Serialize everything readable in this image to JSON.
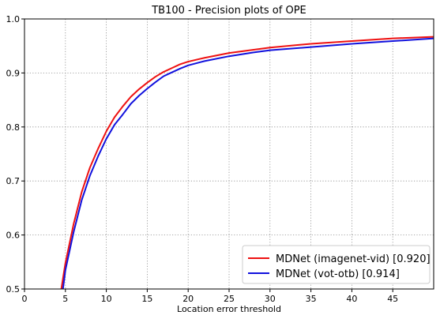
{
  "chart_data": {
    "type": "line",
    "title": "TB100 - Precision plots of OPE",
    "xlabel": "Location error threshold",
    "ylabel": "",
    "xlim": [
      0,
      50
    ],
    "ylim": [
      0.5,
      1.0
    ],
    "xticks": [
      0,
      5,
      10,
      15,
      20,
      25,
      30,
      35,
      40,
      45
    ],
    "yticks": [
      0.5,
      0.6,
      0.7,
      0.8,
      0.9,
      1.0
    ],
    "xtick_labels": [
      "0",
      "5",
      "10",
      "15",
      "20",
      "25",
      "30",
      "35",
      "40",
      "45"
    ],
    "ytick_labels": [
      "0.5",
      "0.6",
      "0.7",
      "0.8",
      "0.9",
      "1.0"
    ],
    "grid": true,
    "legend_position": "bottom-right",
    "series": [
      {
        "name": "MDNet (imagenet-vid) [0.920]",
        "color": "#ee1111",
        "x": [
          4.5,
          5,
          6,
          7,
          8,
          9,
          10,
          11,
          12,
          13,
          14,
          15,
          16,
          17,
          18,
          19,
          20,
          22,
          25,
          28,
          30,
          35,
          40,
          45,
          50
        ],
        "y": [
          0.5,
          0.548,
          0.62,
          0.68,
          0.725,
          0.76,
          0.792,
          0.818,
          0.838,
          0.856,
          0.87,
          0.882,
          0.893,
          0.902,
          0.909,
          0.916,
          0.921,
          0.928,
          0.937,
          0.943,
          0.947,
          0.954,
          0.959,
          0.964,
          0.967
        ]
      },
      {
        "name": "MDNet (vot-otb) [0.914]",
        "color": "#1111dd",
        "x": [
          4.7,
          5,
          6,
          7,
          8,
          9,
          10,
          11,
          12,
          13,
          14,
          15,
          16,
          17,
          18,
          19,
          20,
          22,
          25,
          28,
          30,
          35,
          40,
          45,
          50
        ],
        "y": [
          0.5,
          0.535,
          0.605,
          0.665,
          0.71,
          0.746,
          0.778,
          0.804,
          0.823,
          0.843,
          0.858,
          0.871,
          0.883,
          0.894,
          0.901,
          0.908,
          0.914,
          0.922,
          0.931,
          0.938,
          0.942,
          0.948,
          0.954,
          0.959,
          0.964
        ]
      }
    ]
  }
}
